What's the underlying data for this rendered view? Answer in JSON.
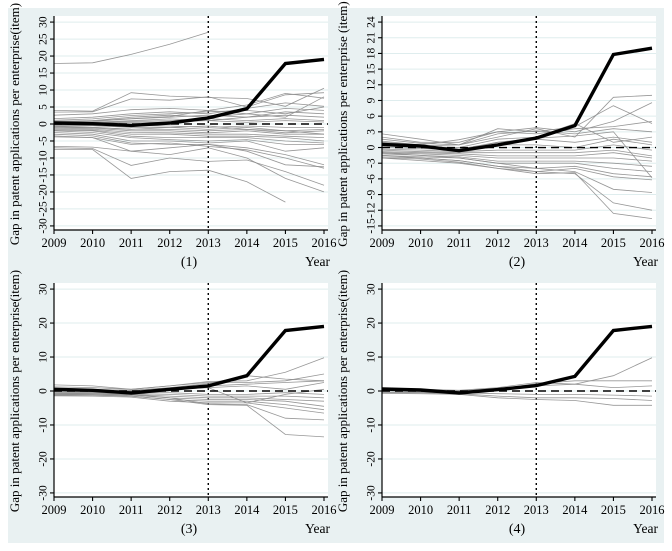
{
  "figure": {
    "background": "#e9f1f2",
    "plot_background": "#ffffff",
    "grid_color": "#dfedee",
    "placebo_color": "#8c8c8c",
    "treatment_color": "#000000",
    "xlabel": "Year",
    "years": [
      2009,
      2010,
      2011,
      2012,
      2013,
      2014,
      2015,
      2016
    ],
    "treatment_year": 2013,
    "zero_line": 0
  },
  "chart_data": [
    {
      "type": "line",
      "panel_label": "(1)",
      "xlabel": "Year",
      "ylabel": "Gap in patent applications per enterprise(item)",
      "x": [
        2009,
        2010,
        2011,
        2012,
        2013,
        2014,
        2015,
        2016
      ],
      "yticks": [
        -30,
        -25,
        -20,
        -15,
        -10,
        -5,
        0,
        5,
        10,
        15,
        20,
        25,
        30
      ],
      "ylim": [
        -30,
        30
      ],
      "vline_x": 2013,
      "hline_y": 0,
      "treatment": [
        0.3,
        0.1,
        -0.4,
        0.3,
        1.8,
        4.5,
        17.8,
        19.0
      ],
      "placebo_lines": [
        [
          17.8,
          18.0,
          20.5,
          23.5,
          27.0,
          null,
          null,
          null
        ],
        [
          4.0,
          3.8,
          9.2,
          8.2,
          7.8,
          7.5,
          5.2,
          10.5
        ],
        [
          3.5,
          3.6,
          7.4,
          7.0,
          8.0,
          5.0,
          8.6,
          9.2
        ],
        [
          2.6,
          3.0,
          4.2,
          4.6,
          4.0,
          5.6,
          9.0,
          7.6
        ],
        [
          1.6,
          2.0,
          3.0,
          3.6,
          3.0,
          4.6,
          6.2,
          5.2
        ],
        [
          1.1,
          1.5,
          2.5,
          3.0,
          3.6,
          4.0,
          3.0,
          5.0
        ],
        [
          0.8,
          1.0,
          2.0,
          2.6,
          2.0,
          3.0,
          4.6,
          4.0
        ],
        [
          0.6,
          0.8,
          1.5,
          2.0,
          2.6,
          2.0,
          3.6,
          3.0
        ],
        [
          0.4,
          0.5,
          1.0,
          1.5,
          1.0,
          2.0,
          2.6,
          2.0
        ],
        [
          0.2,
          0.3,
          0.8,
          1.0,
          1.6,
          1.0,
          1.6,
          1.0
        ],
        [
          0.0,
          0.2,
          0.5,
          0.6,
          1.0,
          0.5,
          1.0,
          0.6
        ],
        [
          -0.2,
          -0.3,
          -0.5,
          -0.6,
          -1.0,
          -0.6,
          -1.0,
          -1.0
        ],
        [
          -0.5,
          -0.5,
          -1.0,
          -1.0,
          -1.6,
          -1.0,
          -2.0,
          -1.6
        ],
        [
          -0.8,
          -1.0,
          -1.5,
          -1.6,
          -2.0,
          -1.6,
          -2.6,
          -2.0
        ],
        [
          -1.0,
          -1.2,
          -2.0,
          -2.0,
          -2.6,
          -2.0,
          -3.0,
          -3.0
        ],
        [
          -1.2,
          -1.5,
          -2.5,
          -2.6,
          -3.0,
          -3.0,
          -3.6,
          -4.0
        ],
        [
          -1.5,
          -1.8,
          -3.0,
          -3.0,
          -3.6,
          -3.6,
          -4.0,
          -5.0
        ],
        [
          -1.8,
          -2.0,
          -3.6,
          -4.0,
          -4.0,
          -4.0,
          -5.0,
          -5.6
        ],
        [
          -2.0,
          -2.5,
          -4.0,
          -4.6,
          -5.0,
          -4.6,
          -6.0,
          -6.0
        ],
        [
          -2.5,
          -3.0,
          -5.0,
          -5.0,
          -5.6,
          -5.0,
          -8.0,
          -7.0
        ],
        [
          -3.0,
          -3.5,
          -5.6,
          -6.0,
          -6.0,
          -7.0,
          -9.0,
          -12.0
        ],
        [
          -3.8,
          -4.0,
          -6.0,
          -5.6,
          -6.6,
          -7.6,
          -10.0,
          -13.0
        ],
        [
          -3.5,
          -4.0,
          -8.0,
          -9.0,
          -7.0,
          -10.0,
          -16.0,
          -20.0
        ],
        [
          -6.6,
          -6.8,
          -8.0,
          -7.0,
          -6.0,
          -8.0,
          -12.0,
          -12.6
        ],
        [
          -7.0,
          -7.2,
          -12.2,
          -10.0,
          -11.0,
          -10.6,
          -14.0,
          -18.0
        ],
        [
          -7.5,
          -7.5,
          -16.0,
          -14.0,
          -13.6,
          -17.0,
          -23.0,
          null
        ],
        [
          0.5,
          1.0,
          1.6,
          2.2,
          4.0,
          3.0,
          2.0,
          8.0
        ],
        [
          -0.6,
          -1.0,
          -1.6,
          -1.0,
          -0.6,
          -1.6,
          -2.0,
          -3.0
        ]
      ]
    },
    {
      "type": "line",
      "panel_label": "(2)",
      "xlabel": "Year",
      "ylabel": "Gap in patent applications per enterprise (item)",
      "x": [
        2009,
        2010,
        2011,
        2012,
        2013,
        2014,
        2015,
        2016
      ],
      "yticks": [
        -15,
        -12,
        -9,
        -6,
        -3,
        0,
        3,
        6,
        9,
        12,
        15,
        18,
        21,
        24
      ],
      "ylim": [
        -15,
        24
      ],
      "vline_x": 2013,
      "hline_y": 0,
      "treatment": [
        0.6,
        0.3,
        -0.6,
        0.5,
        1.8,
        4.2,
        17.8,
        19.0
      ],
      "placebo_lines": [
        [
          2.6,
          1.6,
          0.5,
          2.0,
          3.6,
          2.0,
          9.6,
          10.0
        ],
        [
          2.0,
          1.0,
          1.0,
          3.0,
          3.8,
          3.0,
          5.0,
          8.6
        ],
        [
          1.6,
          0.8,
          0.5,
          3.6,
          3.0,
          4.0,
          8.0,
          4.6
        ],
        [
          1.0,
          0.5,
          1.5,
          3.0,
          2.6,
          3.6,
          4.0,
          5.0
        ],
        [
          0.8,
          0.3,
          0.5,
          2.6,
          3.2,
          2.6,
          3.6,
          3.0
        ],
        [
          0.5,
          0.2,
          0.0,
          1.6,
          2.0,
          4.6,
          1.0,
          2.0
        ],
        [
          0.3,
          0.0,
          -0.3,
          1.0,
          1.6,
          1.0,
          2.0,
          1.0
        ],
        [
          0.0,
          -0.2,
          -0.5,
          0.5,
          0.5,
          0.0,
          1.6,
          0.5
        ],
        [
          -0.3,
          -0.5,
          -0.8,
          -0.5,
          -0.5,
          -0.5,
          0.5,
          -0.5
        ],
        [
          -0.5,
          -0.8,
          -1.0,
          -1.0,
          -1.0,
          -1.0,
          -0.5,
          -1.6
        ],
        [
          -0.8,
          -1.0,
          -1.2,
          -1.6,
          -1.6,
          -1.6,
          -1.0,
          -2.0
        ],
        [
          -1.0,
          -1.2,
          -1.5,
          -2.0,
          -2.0,
          -2.0,
          -2.0,
          -2.6
        ],
        [
          -1.2,
          -1.5,
          -1.8,
          -2.6,
          -2.6,
          -2.6,
          -3.0,
          -3.6
        ],
        [
          -1.5,
          -1.8,
          -2.0,
          -3.0,
          -3.0,
          -3.0,
          -4.0,
          -4.6
        ],
        [
          -1.8,
          -2.0,
          -2.5,
          -3.6,
          -4.0,
          -3.6,
          -5.0,
          -5.6
        ],
        [
          -2.0,
          -2.2,
          -2.8,
          -4.0,
          -4.6,
          -4.0,
          -5.6,
          -6.2
        ],
        [
          -1.0,
          -1.5,
          -2.0,
          -3.0,
          -4.0,
          -4.6,
          -8.0,
          -8.6
        ],
        [
          -1.5,
          -2.0,
          -2.5,
          -3.6,
          -4.6,
          -5.0,
          -10.6,
          -12.0
        ],
        [
          -2.0,
          -2.5,
          -3.0,
          -4.0,
          -5.0,
          -4.8,
          -12.6,
          -13.6
        ],
        [
          1.2,
          0.5,
          -0.5,
          1.0,
          1.8,
          2.2,
          3.0,
          -5.8
        ]
      ]
    },
    {
      "type": "line",
      "panel_label": "(3)",
      "xlabel": "Year",
      "ylabel": "Gap in patent applications per enterprise(item)",
      "x": [
        2009,
        2010,
        2011,
        2012,
        2013,
        2014,
        2015,
        2016
      ],
      "yticks": [
        -30,
        -20,
        -10,
        0,
        10,
        20,
        30
      ],
      "ylim": [
        -30,
        30
      ],
      "vline_x": 2013,
      "hline_y": 0,
      "treatment": [
        0.5,
        0.2,
        -0.6,
        0.5,
        1.5,
        4.5,
        17.8,
        19.0
      ],
      "placebo_lines": [
        [
          1.8,
          1.5,
          0.5,
          1.5,
          2.8,
          3.0,
          5.5,
          9.8
        ],
        [
          1.2,
          1.0,
          0.5,
          1.5,
          2.5,
          2.5,
          3.0,
          5.0
        ],
        [
          0.8,
          0.5,
          0.2,
          1.0,
          2.2,
          4.5,
          3.5,
          3.0
        ],
        [
          0.5,
          0.3,
          0.0,
          0.8,
          1.5,
          2.0,
          2.5,
          3.0
        ],
        [
          0.2,
          0.0,
          -0.3,
          0.5,
          1.0,
          1.5,
          0.5,
          2.5
        ],
        [
          -0.2,
          -0.3,
          -0.5,
          -0.5,
          -1.0,
          -1.0,
          -0.5,
          -1.0
        ],
        [
          -0.5,
          -0.5,
          -0.8,
          -1.0,
          -1.5,
          -1.5,
          -1.5,
          -2.0
        ],
        [
          -0.8,
          -0.8,
          -1.0,
          -1.5,
          -2.0,
          -2.0,
          -2.5,
          -3.0
        ],
        [
          -1.0,
          -1.0,
          -1.2,
          -2.0,
          -2.5,
          -2.5,
          -3.0,
          -4.5
        ],
        [
          -1.2,
          -1.2,
          -1.5,
          -2.5,
          -3.0,
          -3.0,
          -4.0,
          -5.5
        ],
        [
          -1.4,
          -1.5,
          -1.8,
          -3.0,
          -3.5,
          -3.5,
          -5.0,
          -6.5
        ],
        [
          -0.6,
          -0.8,
          -1.0,
          -2.0,
          -3.8,
          -4.0,
          -8.0,
          -8.5
        ],
        [
          -1.0,
          -1.2,
          -1.5,
          -2.5,
          -4.0,
          -4.2,
          -12.8,
          -13.5
        ],
        [
          0.3,
          0.2,
          0.0,
          0.5,
          1.0,
          -3.5,
          -1.0,
          0.5
        ]
      ]
    },
    {
      "type": "line",
      "panel_label": "(4)",
      "xlabel": "Year",
      "ylabel": "Gap in patent applications per enterprise(item)",
      "x": [
        2009,
        2010,
        2011,
        2012,
        2013,
        2014,
        2015,
        2016
      ],
      "yticks": [
        -30,
        -20,
        -10,
        0,
        10,
        20,
        30
      ],
      "ylim": [
        -30,
        30
      ],
      "vline_x": 2013,
      "hline_y": 0,
      "treatment": [
        0.6,
        0.3,
        -0.6,
        0.4,
        1.6,
        4.3,
        17.8,
        19.0
      ],
      "placebo_lines": [
        [
          0.5,
          0.3,
          0.0,
          0.8,
          1.5,
          2.0,
          4.5,
          9.8
        ],
        [
          0.3,
          0.2,
          -0.2,
          0.5,
          2.2,
          3.0,
          3.0,
          3.0
        ],
        [
          -0.3,
          -0.3,
          -0.5,
          -0.8,
          -1.0,
          -1.0,
          -1.2,
          -1.5
        ],
        [
          -0.5,
          -0.5,
          -0.8,
          -1.5,
          -2.0,
          -2.0,
          -2.2,
          -2.8
        ],
        [
          -0.7,
          -0.8,
          -1.0,
          -2.0,
          -2.5,
          -2.8,
          -4.2,
          -4.2
        ],
        [
          0.8,
          0.5,
          0.2,
          1.0,
          2.5,
          2.0,
          1.0,
          1.5
        ]
      ]
    }
  ]
}
